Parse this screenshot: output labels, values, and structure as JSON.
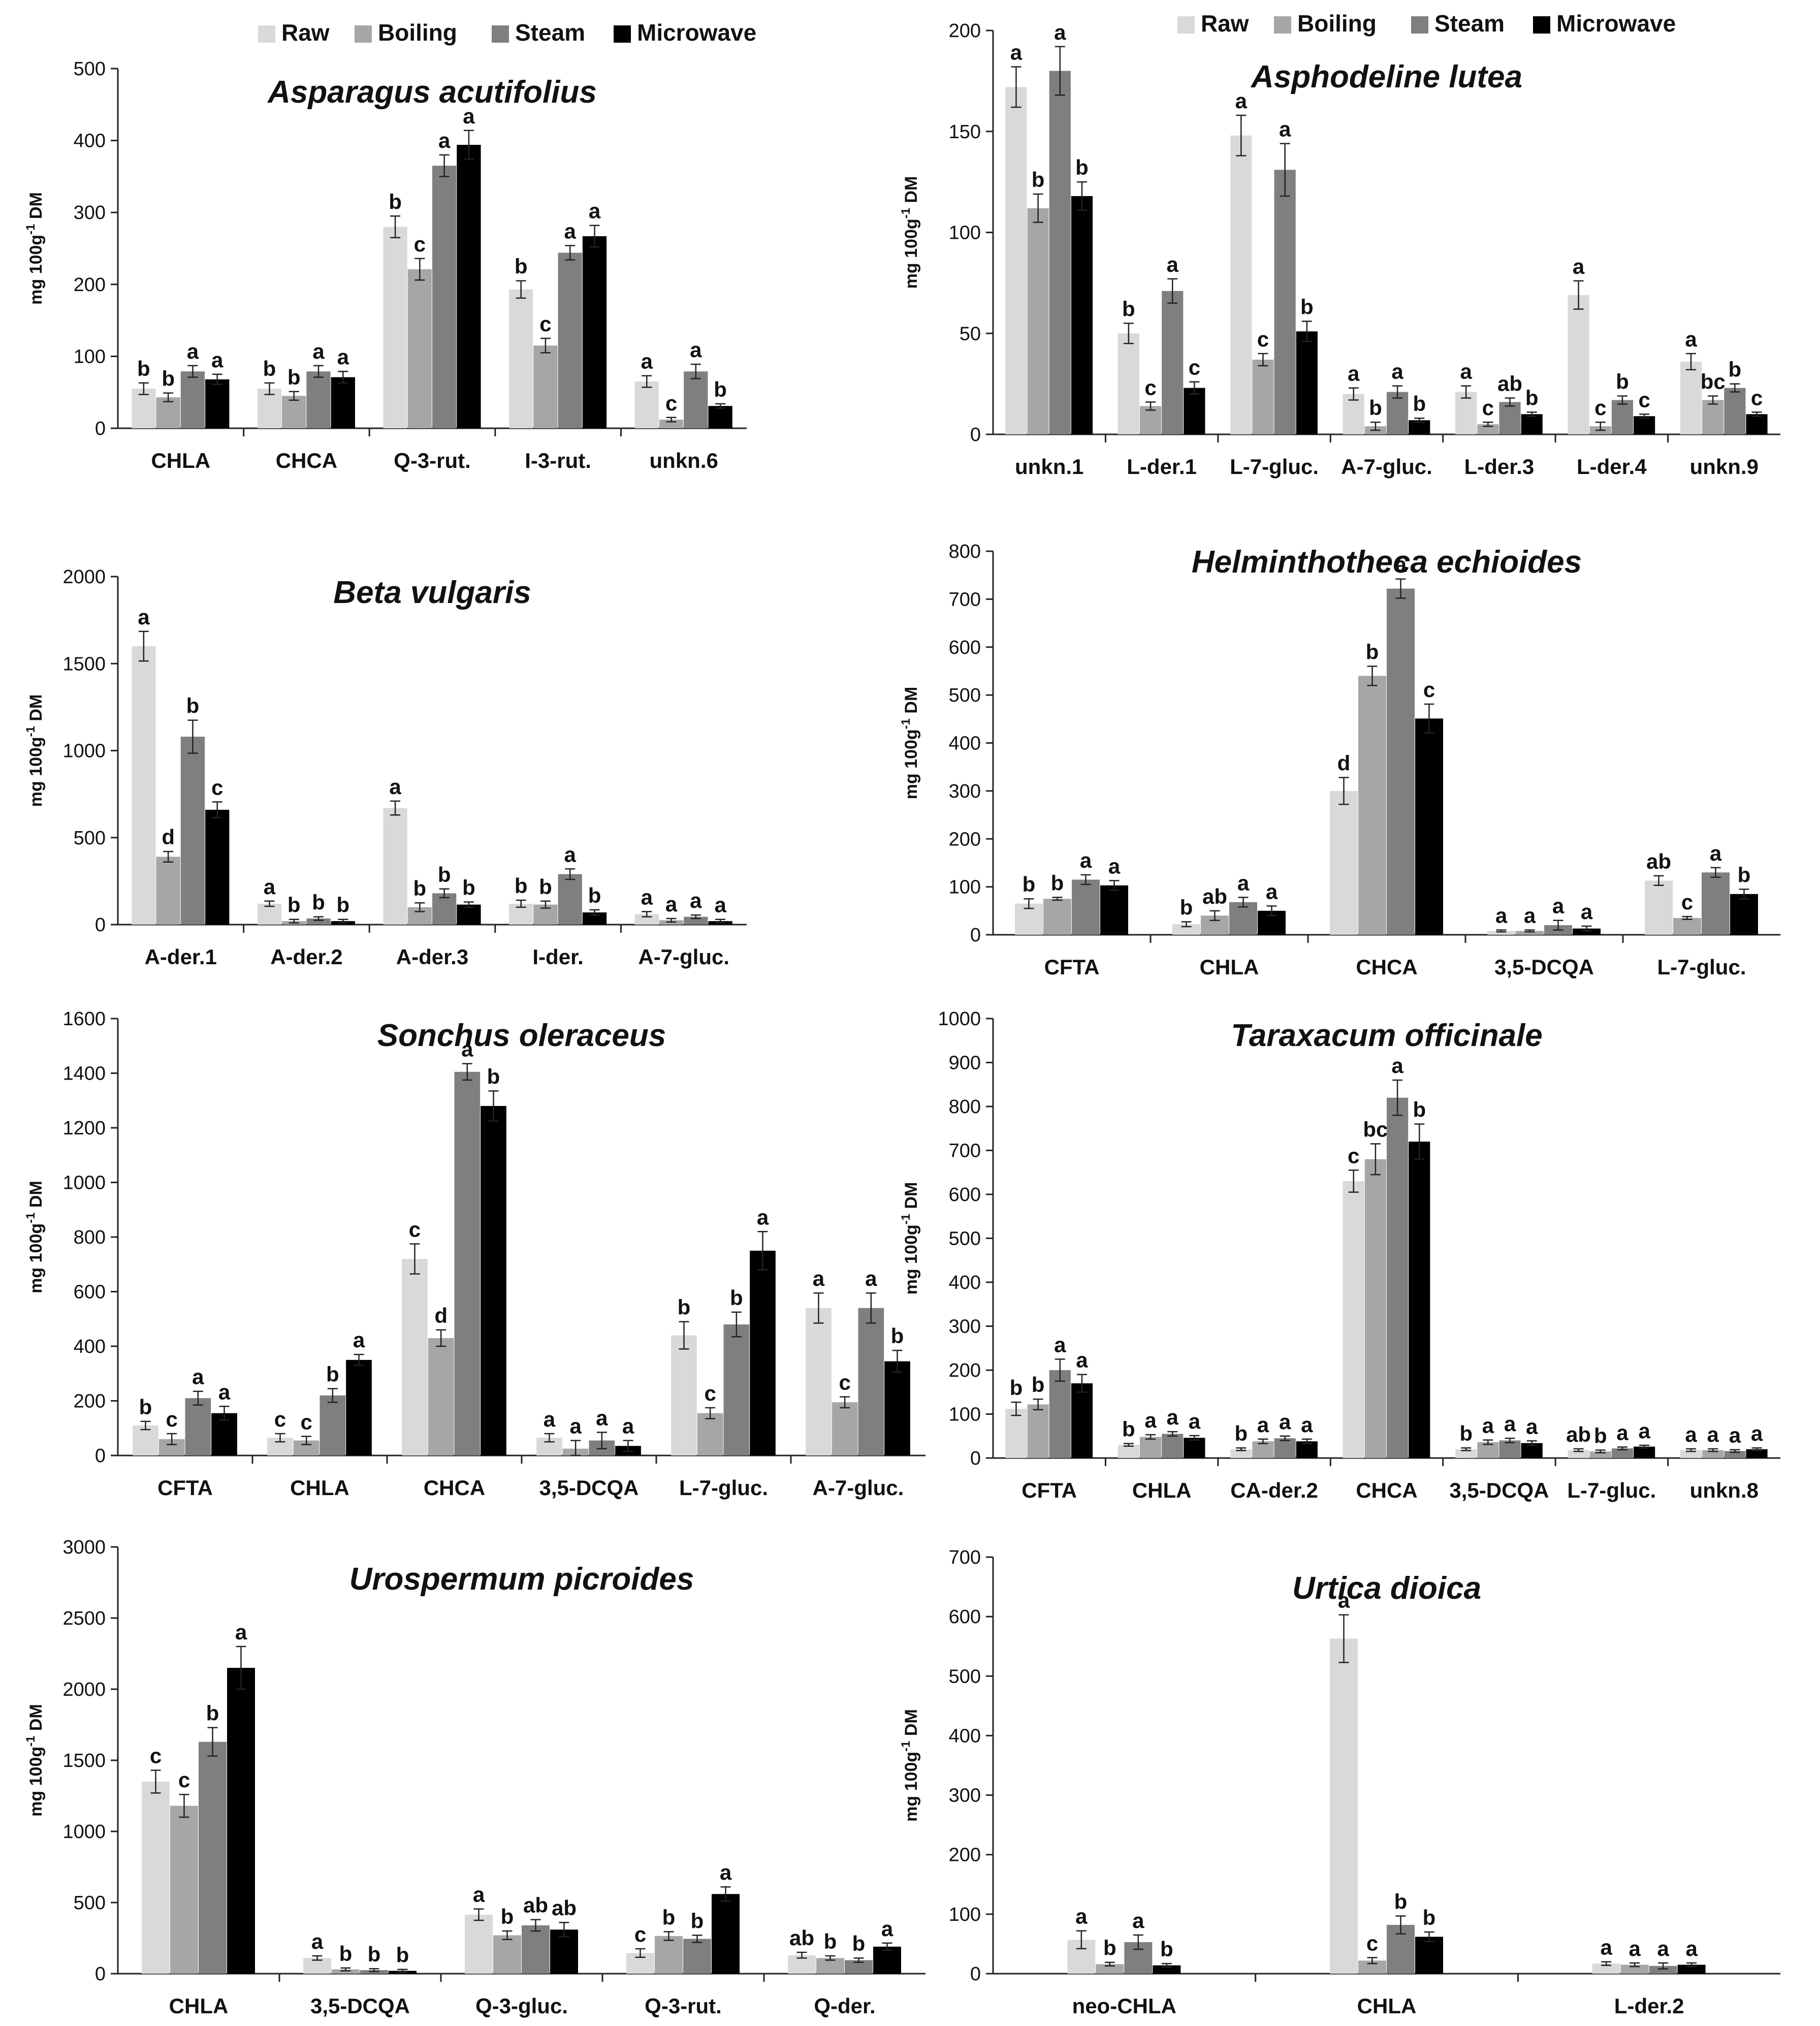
{
  "series_names": [
    "Raw",
    "Boiling",
    "Steam",
    "Microwave"
  ],
  "series_colors": [
    "#d9d9d9",
    "#a6a6a6",
    "#7f7f7f",
    "#000000"
  ],
  "chart_data": [
    {
      "type": "bar",
      "title": "Asparagus acutifolius",
      "ylabel": "mg 100g-1 DM",
      "ylim": [
        0,
        500
      ],
      "yticks": [
        0,
        100,
        200,
        300,
        400,
        500
      ],
      "legend": "top",
      "categories": [
        "CHLA",
        "CHCA",
        "Q-3-rut.",
        "I-3-rut.",
        "unkn.6"
      ],
      "series": [
        {
          "name": "Raw",
          "values": [
            55,
            55,
            280,
            193,
            65
          ],
          "errors": [
            8,
            8,
            15,
            12,
            8
          ],
          "letters": [
            "b",
            "b",
            "b",
            "b",
            "a"
          ]
        },
        {
          "name": "Boiling",
          "values": [
            43,
            45,
            221,
            115,
            12
          ],
          "errors": [
            6,
            6,
            15,
            10,
            3
          ],
          "letters": [
            "b",
            "b",
            "c",
            "c",
            "c"
          ]
        },
        {
          "name": "Steam",
          "values": [
            79,
            79,
            365,
            244,
            79
          ],
          "errors": [
            8,
            8,
            15,
            10,
            10
          ],
          "letters": [
            "a",
            "a",
            "a",
            "a",
            "a"
          ]
        },
        {
          "name": "Microwave",
          "values": [
            68,
            71,
            394,
            267,
            31
          ],
          "errors": [
            7,
            8,
            20,
            15,
            3
          ],
          "letters": [
            "a",
            "a",
            "a",
            "a",
            "b"
          ]
        }
      ]
    },
    {
      "type": "bar",
      "title": "Asphodeline lutea",
      "ylabel": "mg 100g-1 DM",
      "ylim": [
        0,
        200
      ],
      "yticks": [
        0,
        50,
        100,
        150,
        200
      ],
      "legend": "top",
      "categories": [
        "unkn.1",
        "L-der.1",
        "L-7-gluc.",
        "A-7-gluc.",
        "L-der.3",
        "L-der.4",
        "unkn.9"
      ],
      "series": [
        {
          "name": "Raw",
          "values": [
            172,
            50,
            148,
            20,
            21,
            69,
            36
          ],
          "errors": [
            10,
            5,
            10,
            3,
            3,
            7,
            4
          ],
          "letters": [
            "a",
            "b",
            "a",
            "a",
            "a",
            "a",
            "a"
          ]
        },
        {
          "name": "Boiling",
          "values": [
            112,
            14,
            37,
            4,
            5,
            4,
            17
          ],
          "errors": [
            7,
            2,
            3,
            2,
            1,
            2,
            2
          ],
          "letters": [
            "b",
            "c",
            "c",
            "b",
            "c",
            "c",
            "bc"
          ]
        },
        {
          "name": "Steam",
          "values": [
            180,
            71,
            131,
            21,
            16,
            17,
            23
          ],
          "errors": [
            12,
            6,
            13,
            3,
            2,
            2,
            2
          ],
          "letters": [
            "a",
            "a",
            "a",
            "a",
            "ab",
            "b",
            "b"
          ]
        },
        {
          "name": "Microwave",
          "values": [
            118,
            23,
            51,
            7,
            10,
            9,
            10
          ],
          "errors": [
            7,
            3,
            5,
            1,
            1,
            1,
            1
          ],
          "letters": [
            "b",
            "c",
            "b",
            "b",
            "b",
            "c",
            "c"
          ]
        }
      ]
    },
    {
      "type": "bar",
      "title": "Beta vulgaris",
      "ylabel": "mg 100g-1 DM",
      "ylim": [
        0,
        2000
      ],
      "yticks": [
        0,
        500,
        1000,
        1500,
        2000
      ],
      "legend": "none",
      "categories": [
        "A-der.1",
        "A-der.2",
        "A-der.3",
        "I-der.",
        "A-7-gluc."
      ],
      "series": [
        {
          "name": "Raw",
          "values": [
            1600,
            120,
            670,
            120,
            60
          ],
          "errors": [
            85,
            15,
            40,
            20,
            15
          ],
          "letters": [
            "a",
            "a",
            "a",
            "b",
            "a"
          ]
        },
        {
          "name": "Boiling",
          "values": [
            390,
            20,
            100,
            115,
            25
          ],
          "errors": [
            30,
            10,
            25,
            20,
            10
          ],
          "letters": [
            "d",
            "b",
            "b",
            "b",
            "a"
          ]
        },
        {
          "name": "Steam",
          "values": [
            1080,
            35,
            180,
            290,
            45
          ],
          "errors": [
            95,
            10,
            25,
            30,
            10
          ],
          "letters": [
            "b",
            "b",
            "b",
            "a",
            "a"
          ]
        },
        {
          "name": "Microwave",
          "values": [
            660,
            20,
            115,
            70,
            20
          ],
          "errors": [
            45,
            10,
            15,
            15,
            10
          ],
          "letters": [
            "c",
            "b",
            "b",
            "b",
            "a"
          ]
        }
      ]
    },
    {
      "type": "bar",
      "title": "Helminthotheca echioides",
      "ylabel": "mg 100g-1 DM",
      "ylim": [
        0,
        800
      ],
      "yticks": [
        0,
        100,
        200,
        300,
        400,
        500,
        600,
        700,
        800
      ],
      "legend": "none",
      "categories": [
        "CFTA",
        "CHLA",
        "CHCA",
        "3,5-DCQA",
        "L-7-gluc."
      ],
      "series": [
        {
          "name": "Raw",
          "values": [
            65,
            22,
            300,
            8,
            113
          ],
          "errors": [
            10,
            5,
            28,
            2,
            10
          ],
          "letters": [
            "b",
            "b",
            "d",
            "a",
            "ab"
          ]
        },
        {
          "name": "Boiling",
          "values": [
            75,
            40,
            540,
            8,
            35
          ],
          "errors": [
            3,
            10,
            20,
            2,
            3
          ],
          "letters": [
            "b",
            "ab",
            "b",
            "a",
            "c"
          ]
        },
        {
          "name": "Steam",
          "values": [
            115,
            68,
            722,
            20,
            130
          ],
          "errors": [
            10,
            10,
            20,
            10,
            10
          ],
          "letters": [
            "a",
            "a",
            "a",
            "a",
            "a"
          ]
        },
        {
          "name": "Microwave",
          "values": [
            103,
            50,
            451,
            13,
            85
          ],
          "errors": [
            10,
            10,
            30,
            5,
            10
          ],
          "letters": [
            "a",
            "a",
            "c",
            "a",
            "b"
          ]
        }
      ]
    },
    {
      "type": "bar",
      "title": "Sonchus oleraceus",
      "ylabel": "mg 100g-1 DM",
      "ylim": [
        0,
        1600
      ],
      "yticks": [
        0,
        200,
        400,
        600,
        800,
        1000,
        1200,
        1400,
        1600
      ],
      "legend": "none",
      "categories": [
        "CFTA",
        "CHLA",
        "CHCA",
        "3,5-DCQA",
        "L-7-gluc.",
        "A-7-gluc."
      ],
      "series": [
        {
          "name": "Raw",
          "values": [
            110,
            65,
            720,
            65,
            440,
            540
          ],
          "errors": [
            15,
            15,
            55,
            15,
            50,
            55
          ],
          "letters": [
            "b",
            "c",
            "c",
            "a",
            "b",
            "a"
          ]
        },
        {
          "name": "Boiling",
          "values": [
            60,
            55,
            430,
            25,
            155,
            195
          ],
          "errors": [
            20,
            15,
            30,
            30,
            20,
            20
          ],
          "letters": [
            "c",
            "c",
            "d",
            "a",
            "c",
            "c"
          ]
        },
        {
          "name": "Steam",
          "values": [
            210,
            220,
            1405,
            55,
            480,
            540
          ],
          "errors": [
            25,
            25,
            30,
            30,
            45,
            55
          ],
          "letters": [
            "a",
            "b",
            "a",
            "a",
            "b",
            "a"
          ]
        },
        {
          "name": "Microwave",
          "values": [
            155,
            350,
            1280,
            35,
            750,
            345
          ],
          "errors": [
            25,
            20,
            55,
            20,
            70,
            40
          ],
          "letters": [
            "a",
            "a",
            "b",
            "a",
            "a",
            "b"
          ]
        }
      ]
    },
    {
      "type": "bar",
      "title": "Taraxacum officinale",
      "ylabel": "mg 100g-1 DM",
      "ylim": [
        0,
        1000
      ],
      "yticks": [
        0,
        100,
        200,
        300,
        400,
        500,
        600,
        700,
        800,
        900,
        1000
      ],
      "legend": "none",
      "categories": [
        "CFTA",
        "CHLA",
        "CA-der.2",
        "CHCA",
        "3,5-DCQA",
        "L-7-gluc.",
        "unkn.8"
      ],
      "series": [
        {
          "name": "Raw",
          "values": [
            112,
            30,
            20,
            630,
            20,
            18,
            18
          ],
          "errors": [
            15,
            3,
            3,
            25,
            3,
            3,
            3
          ],
          "letters": [
            "b",
            "b",
            "b",
            "c",
            "b",
            "ab",
            "a"
          ]
        },
        {
          "name": "Boiling",
          "values": [
            122,
            48,
            38,
            680,
            36,
            15,
            18
          ],
          "errors": [
            12,
            5,
            5,
            35,
            5,
            3,
            3
          ],
          "letters": [
            "b",
            "a",
            "a",
            "bc",
            "a",
            "b",
            "a"
          ]
        },
        {
          "name": "Steam",
          "values": [
            200,
            55,
            45,
            820,
            40,
            22,
            16
          ],
          "errors": [
            25,
            5,
            5,
            40,
            5,
            3,
            3
          ],
          "letters": [
            "a",
            "a",
            "a",
            "a",
            "a",
            "a",
            "a"
          ]
        },
        {
          "name": "Microwave",
          "values": [
            170,
            46,
            38,
            720,
            34,
            26,
            20
          ],
          "errors": [
            20,
            5,
            5,
            40,
            5,
            3,
            3
          ],
          "letters": [
            "a",
            "a",
            "a",
            "b",
            "a",
            "a",
            "a"
          ]
        }
      ]
    },
    {
      "type": "bar",
      "title": "Urospermum picroides",
      "ylabel": "mg 100g-1 DM",
      "ylim": [
        0,
        3000
      ],
      "yticks": [
        0,
        500,
        1000,
        1500,
        2000,
        2500,
        3000
      ],
      "legend": "none",
      "categories": [
        "CHLA",
        "3,5-DCQA",
        "Q-3-gluc.",
        "Q-3-rut.",
        "Q-der."
      ],
      "series": [
        {
          "name": "Raw",
          "values": [
            1350,
            110,
            415,
            145,
            130
          ],
          "errors": [
            80,
            15,
            40,
            30,
            20
          ],
          "letters": [
            "c",
            "a",
            "a",
            "c",
            "ab"
          ]
        },
        {
          "name": "Boiling",
          "values": [
            1180,
            30,
            270,
            265,
            110
          ],
          "errors": [
            80,
            10,
            30,
            30,
            15
          ],
          "letters": [
            "c",
            "b",
            "b",
            "b",
            "b"
          ]
        },
        {
          "name": "Steam",
          "values": [
            1630,
            25,
            340,
            245,
            95
          ],
          "errors": [
            100,
            10,
            40,
            25,
            15
          ],
          "letters": [
            "b",
            "b",
            "ab",
            "b",
            "b"
          ]
        },
        {
          "name": "Microwave",
          "values": [
            2150,
            20,
            310,
            560,
            190
          ],
          "errors": [
            150,
            10,
            50,
            50,
            25
          ],
          "letters": [
            "a",
            "b",
            "ab",
            "a",
            "a"
          ]
        }
      ]
    },
    {
      "type": "bar",
      "title": "Urtica dioica",
      "ylabel": "mg 100g-1 DM",
      "ylim": [
        0,
        700
      ],
      "yticks": [
        0,
        100,
        200,
        300,
        400,
        500,
        600,
        700
      ],
      "legend": "none",
      "categories": [
        "neo-CHLA",
        "CHLA",
        "L-der.2"
      ],
      "series": [
        {
          "name": "Raw",
          "values": [
            57,
            563,
            17
          ],
          "errors": [
            15,
            40,
            3
          ],
          "letters": [
            "a",
            "a",
            "a"
          ]
        },
        {
          "name": "Boiling",
          "values": [
            16,
            22,
            15
          ],
          "errors": [
            3,
            5,
            3
          ],
          "letters": [
            "b",
            "c",
            "a"
          ]
        },
        {
          "name": "Steam",
          "values": [
            53,
            82,
            13
          ],
          "errors": [
            12,
            15,
            5
          ],
          "letters": [
            "a",
            "b",
            "a"
          ]
        },
        {
          "name": "Microwave",
          "values": [
            14,
            62,
            15
          ],
          "errors": [
            3,
            8,
            3
          ],
          "letters": [
            "b",
            "b",
            "a"
          ]
        }
      ]
    }
  ]
}
